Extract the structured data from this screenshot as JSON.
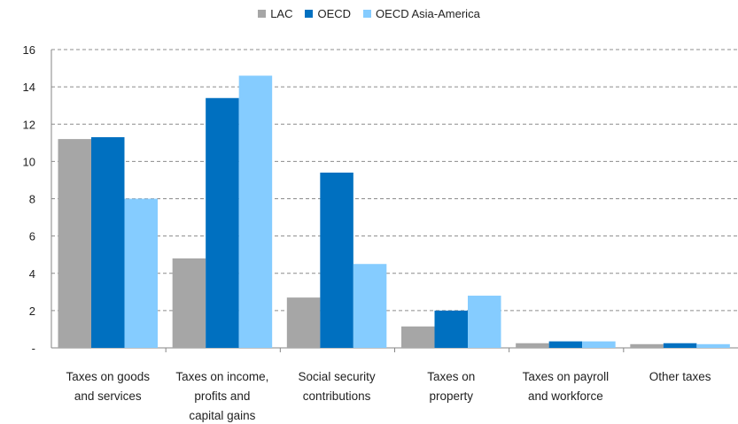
{
  "colors": {
    "LAC": "#a6a6a6",
    "OECD": "#0070c0",
    "OECD Asia-America": "#85ccff"
  },
  "chart_data": {
    "type": "bar",
    "categories": [
      [
        "Taxes on goods",
        "and services"
      ],
      [
        "Taxes on income,",
        "profits and",
        "capital gains"
      ],
      [
        "Social security",
        "contributions"
      ],
      [
        "Taxes on",
        "property"
      ],
      [
        "Taxes on payroll",
        "and workforce"
      ],
      [
        "Other taxes"
      ]
    ],
    "series": [
      {
        "name": "LAC",
        "values": [
          11.2,
          4.8,
          2.7,
          1.15,
          0.25,
          0.2
        ]
      },
      {
        "name": "OECD",
        "values": [
          11.3,
          13.4,
          9.4,
          2.0,
          0.35,
          0.25
        ]
      },
      {
        "name": "OECD Asia-America",
        "values": [
          8.0,
          14.6,
          4.5,
          2.8,
          0.35,
          0.2
        ]
      }
    ],
    "ylim": [
      0,
      16
    ],
    "yticks": [
      "-",
      "2",
      "4",
      "6",
      "8",
      "10",
      "12",
      "14",
      "16"
    ],
    "grid": true,
    "legend": "top-center"
  }
}
